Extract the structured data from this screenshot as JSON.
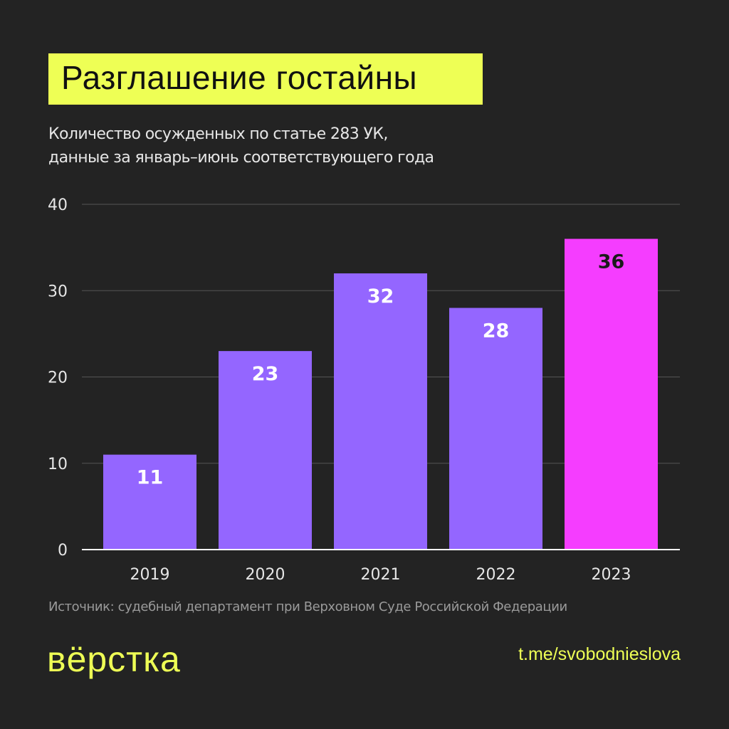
{
  "header": {
    "title": "Разглашение гостайны",
    "subtitle_line1": "Количество осужденных по статье 283 УК,",
    "subtitle_line2": "данные за январь–июнь соответствующего года"
  },
  "chart_data": {
    "type": "bar",
    "title": "Разглашение гостайны",
    "subtitle": "Количество осужденных по статье 283 УК, данные за январь–июнь соответствующего года",
    "categories": [
      "2019",
      "2020",
      "2021",
      "2022",
      "2023"
    ],
    "values": [
      11,
      23,
      32,
      28,
      36
    ],
    "data_labels": [
      "11",
      "23",
      "32",
      "28",
      "36"
    ],
    "yticks": [
      "0",
      "10",
      "20",
      "30",
      "40"
    ],
    "ylim": [
      0,
      40
    ],
    "grid": true,
    "highlight_category": "2023",
    "colors": {
      "default": "#9466ff",
      "highlight": "#f53dff",
      "label_default": "#ffffff",
      "label_highlight": "#1a1a1a",
      "grid": "#555555",
      "axis": "#ffffff",
      "tick_text": "#e6e6e6"
    }
  },
  "footer": {
    "source": "Источник: судебный департамент при Верховном Суде Российской Федерации",
    "logo": "вёрстка",
    "link": "t.me/svobodnieslova"
  },
  "colors": {
    "background": "#232323",
    "accent": "#eeff55"
  }
}
